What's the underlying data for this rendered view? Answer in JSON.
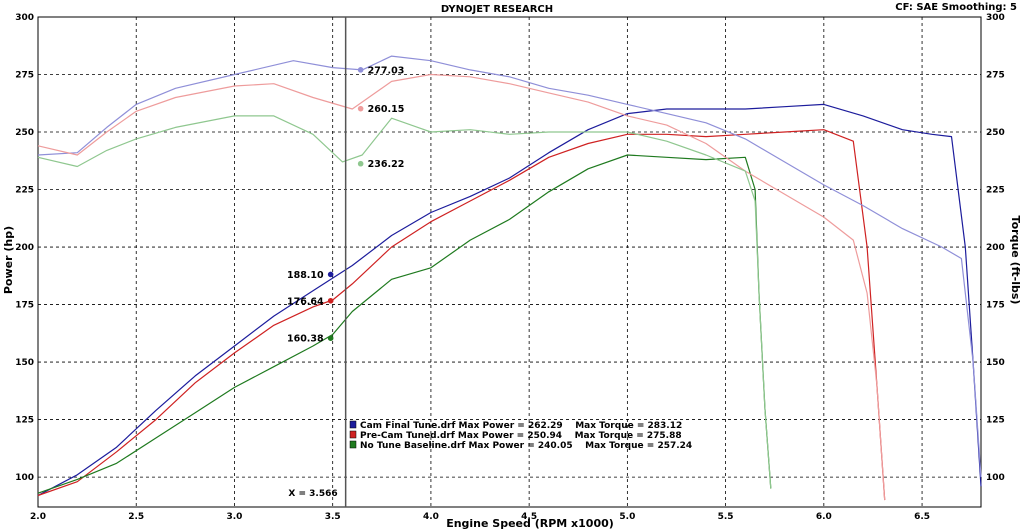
{
  "header": {
    "title": "DYNOJET RESEARCH",
    "settings": "CF: SAE  Smoothing: 5"
  },
  "chart_data": {
    "type": "line",
    "title": "DYNOJET RESEARCH",
    "xlabel": "Engine Speed (RPM x1000)",
    "ylabel_left": "Power (hp)",
    "ylabel_right": "Torque (ft-lbs)",
    "xlim": [
      2.0,
      6.8
    ],
    "ylim": [
      87,
      300
    ],
    "x_ticks": [
      "2.0",
      "2.5",
      "3.0",
      "3.5",
      "4.0",
      "4.5",
      "5.0",
      "5.5",
      "6.0",
      "6.5"
    ],
    "x_tick_values": [
      2.0,
      2.5,
      3.0,
      3.5,
      4.0,
      4.5,
      5.0,
      5.5,
      6.0,
      6.5
    ],
    "y_ticks": [
      "300",
      "275",
      "250",
      "225",
      "200",
      "175",
      "150",
      "125",
      "100"
    ],
    "y_tick_values": [
      300,
      275,
      250,
      225,
      200,
      175,
      150,
      125,
      100
    ],
    "grid": true,
    "colors": {
      "blue": "#1c1c9c",
      "red": "#cf2222",
      "green": "#1f7a1f",
      "blue_light": "#8f8fd8",
      "red_light": "#ee9c9c",
      "green_light": "#8fc78f",
      "cursor": "#555555",
      "axis_text": "#000000"
    },
    "cursor": {
      "x": 3.566,
      "label": "X = 3.566"
    },
    "series": [
      {
        "name": "Cam Final Tune.drf",
        "kind": "power",
        "color": "#1c1c9c",
        "x": [
          2.0,
          2.2,
          2.4,
          2.6,
          2.8,
          3.0,
          3.2,
          3.4,
          3.6,
          3.8,
          4.0,
          4.2,
          4.4,
          4.6,
          4.8,
          5.0,
          5.2,
          5.4,
          5.6,
          5.8,
          6.0,
          6.2,
          6.4,
          6.55,
          6.65,
          6.72,
          6.76,
          6.8
        ],
        "y": [
          92,
          101,
          113,
          129,
          144,
          157,
          170,
          181,
          192,
          205,
          215,
          222,
          230,
          241,
          251,
          258,
          260,
          260,
          260,
          261,
          262,
          257,
          251,
          249,
          248,
          200,
          150,
          96
        ]
      },
      {
        "name": "Pre-Cam Tuned.drf",
        "kind": "power",
        "color": "#cf2222",
        "x": [
          2.0,
          2.2,
          2.4,
          2.6,
          2.8,
          3.0,
          3.2,
          3.4,
          3.5,
          3.6,
          3.8,
          4.0,
          4.2,
          4.4,
          4.6,
          4.8,
          5.0,
          5.2,
          5.4,
          5.6,
          5.8,
          6.0,
          6.15,
          6.22,
          6.27,
          6.31
        ],
        "y": [
          92,
          98,
          111,
          125,
          141,
          154,
          166,
          174,
          177,
          184,
          200,
          211,
          220,
          229,
          239,
          245,
          249,
          249,
          248,
          249,
          250,
          251,
          246,
          200,
          140,
          90
        ]
      },
      {
        "name": "No Tune Baseline.drf",
        "kind": "power",
        "color": "#1f7a1f",
        "x": [
          2.0,
          2.2,
          2.4,
          2.6,
          2.8,
          3.0,
          3.2,
          3.4,
          3.5,
          3.6,
          3.8,
          4.0,
          4.2,
          4.4,
          4.6,
          4.8,
          5.0,
          5.2,
          5.4,
          5.6,
          5.65,
          5.67,
          5.7,
          5.73
        ],
        "y": [
          93,
          99,
          106,
          117,
          128,
          139,
          148,
          157,
          162,
          172,
          186,
          191,
          203,
          212,
          224,
          234,
          240,
          239,
          238,
          239,
          225,
          180,
          130,
          95
        ]
      },
      {
        "name": "Cam Final Tune.drf",
        "kind": "torque",
        "color": "#8f8fd8",
        "x": [
          2.0,
          2.2,
          2.35,
          2.5,
          2.7,
          3.0,
          3.3,
          3.5,
          3.65,
          3.8,
          4.0,
          4.2,
          4.4,
          4.6,
          4.8,
          5.0,
          5.2,
          5.4,
          5.6,
          5.8,
          6.0,
          6.2,
          6.4,
          6.6,
          6.7,
          6.76,
          6.8
        ],
        "y": [
          240,
          241,
          252,
          262,
          269,
          275,
          281,
          278,
          277,
          283,
          281,
          277,
          274,
          269,
          266,
          262,
          258,
          254,
          247,
          237,
          227,
          218,
          208,
          200,
          195,
          150,
          100
        ]
      },
      {
        "name": "Pre-Cam Tuned.drf",
        "kind": "torque",
        "color": "#ee9c9c",
        "x": [
          2.0,
          2.2,
          2.35,
          2.5,
          2.7,
          3.0,
          3.2,
          3.4,
          3.6,
          3.8,
          4.0,
          4.2,
          4.4,
          4.6,
          4.8,
          5.0,
          5.2,
          5.4,
          5.6,
          5.8,
          6.0,
          6.15,
          6.22,
          6.27,
          6.31
        ],
        "y": [
          244,
          240,
          250,
          259,
          265,
          270,
          271,
          265,
          260,
          272,
          275,
          274,
          271,
          267,
          263,
          257,
          253,
          245,
          233,
          223,
          213,
          203,
          180,
          140,
          90
        ]
      },
      {
        "name": "No Tune Baseline.drf",
        "kind": "torque",
        "color": "#8fc78f",
        "x": [
          2.0,
          2.2,
          2.35,
          2.5,
          2.7,
          3.0,
          3.2,
          3.4,
          3.55,
          3.65,
          3.8,
          4.0,
          4.2,
          4.4,
          4.6,
          4.8,
          5.0,
          5.2,
          5.4,
          5.6,
          5.65,
          5.67,
          5.7,
          5.73
        ],
        "y": [
          239,
          235,
          242,
          247,
          252,
          257,
          257,
          249,
          237,
          240,
          256,
          250,
          251,
          249,
          250,
          250,
          250,
          246,
          240,
          233,
          220,
          180,
          130,
          95
        ]
      }
    ],
    "cursor_markers": [
      {
        "label": "277.03",
        "value": 277.03,
        "color": "#8f8fd8",
        "side": "right"
      },
      {
        "label": "260.15",
        "value": 260.15,
        "color": "#ee9c9c",
        "side": "right"
      },
      {
        "label": "236.22",
        "value": 236.22,
        "color": "#8fc78f",
        "side": "right"
      },
      {
        "label": "188.10",
        "value": 188.1,
        "color": "#1c1c9c",
        "side": "left"
      },
      {
        "label": "176.64",
        "value": 176.64,
        "color": "#cf2222",
        "side": "left"
      },
      {
        "label": "160.38",
        "value": 160.38,
        "color": "#1f7a1f",
        "side": "left"
      }
    ],
    "legend": {
      "placement": "bottom-center",
      "entries": [
        {
          "text": "Cam Final Tune.drf Max Power = 262.29    Max Torque = 283.12",
          "color": "#1c1c9c"
        },
        {
          "text": "Pre-Cam Tuned.drf Max Power = 250.94    Max Torque = 275.88",
          "color": "#cf2222"
        },
        {
          "text": "No Tune Baseline.drf Max Power = 240.05    Max Torque = 257.24",
          "color": "#1f7a1f"
        }
      ]
    }
  }
}
